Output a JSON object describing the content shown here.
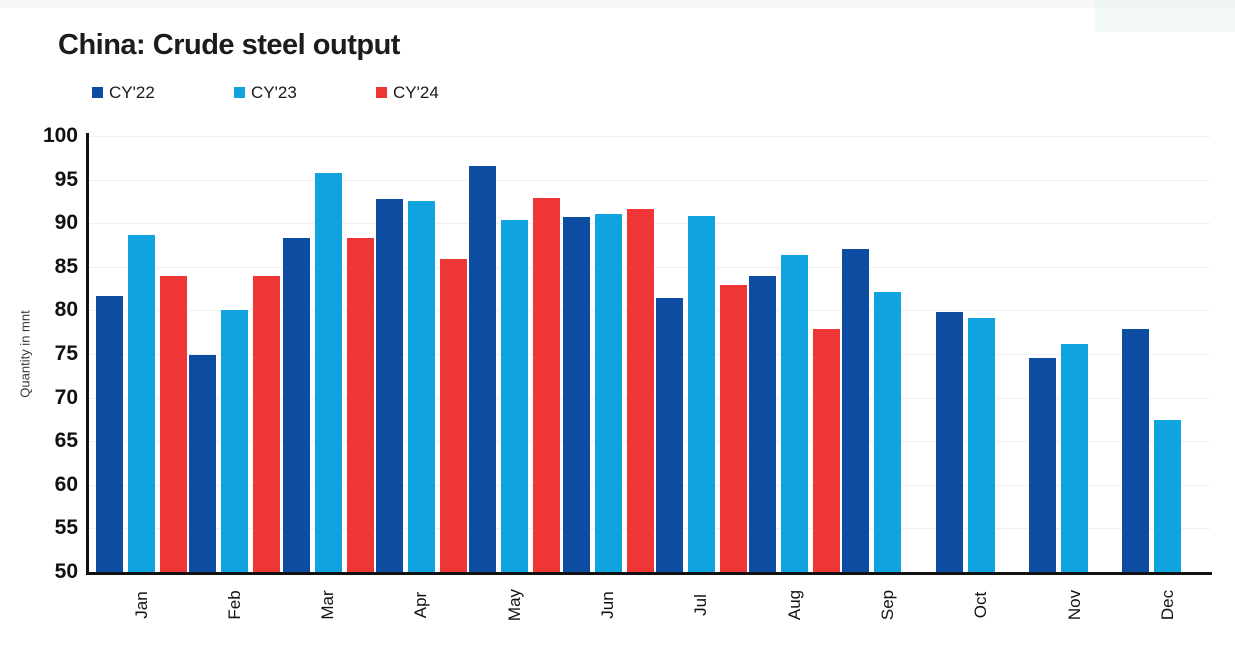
{
  "chart_data": {
    "type": "bar",
    "title": "China: Crude steel output",
    "ylabel": "Quantity in mnt",
    "xlabel": "",
    "ylim": [
      50,
      100
    ],
    "ytick_step": 5,
    "yticks": [
      100,
      95,
      90,
      85,
      80,
      75,
      70,
      65,
      60,
      55,
      50
    ],
    "grid": true,
    "legend_position": "top-left",
    "categories": [
      "Jan",
      "Feb",
      "Mar",
      "Apr",
      "May",
      "Jun",
      "Jul",
      "Aug",
      "Sep",
      "Oct",
      "Nov",
      "Dec"
    ],
    "series": [
      {
        "name": "CY'22",
        "color": "#0c4da2",
        "values": [
          81.7,
          74.9,
          88.3,
          92.8,
          96.6,
          90.7,
          81.4,
          83.9,
          87.0,
          79.8,
          74.5,
          77.9
        ]
      },
      {
        "name": "CY'23",
        "color": "#0fa3e0",
        "values": [
          88.6,
          80.0,
          95.7,
          92.6,
          90.4,
          91.1,
          90.8,
          86.4,
          82.1,
          79.1,
          76.1,
          67.4
        ]
      },
      {
        "name": "CY'24",
        "color": "#ee3636",
        "values": [
          84.0,
          84.0,
          88.3,
          85.9,
          92.9,
          91.6,
          82.9,
          77.9,
          null,
          null,
          null,
          null
        ]
      }
    ]
  }
}
